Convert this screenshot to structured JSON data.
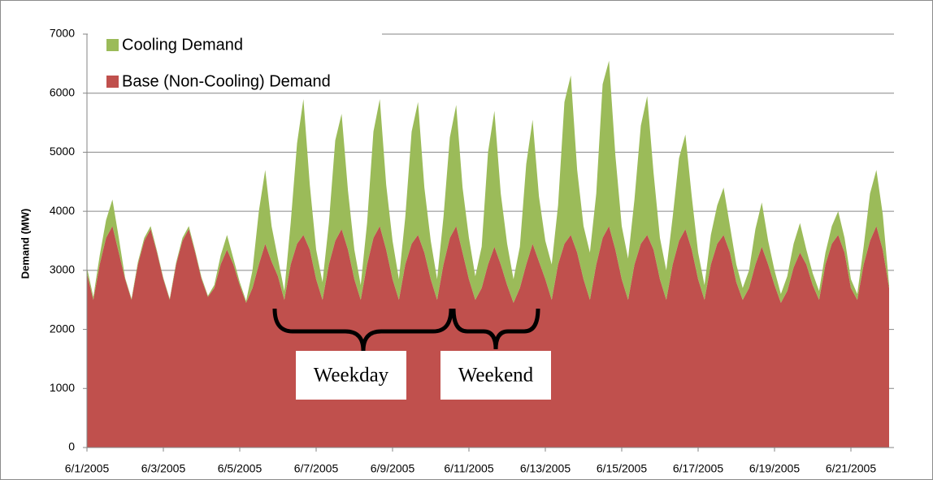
{
  "chart_data": {
    "type": "stacked-area",
    "y_label": "Demand (MW)",
    "categories": [
      "6/1/2005",
      null,
      null,
      null,
      null,
      null,
      null,
      null,
      null,
      null,
      null,
      null,
      "6/3/2005",
      null,
      null,
      null,
      null,
      null,
      null,
      null,
      null,
      null,
      null,
      null,
      "6/5/2005",
      null,
      null,
      null,
      null,
      null,
      null,
      null,
      null,
      null,
      null,
      null,
      "6/7/2005",
      null,
      null,
      null,
      null,
      null,
      null,
      null,
      null,
      null,
      null,
      null,
      "6/9/2005",
      null,
      null,
      null,
      null,
      null,
      null,
      null,
      null,
      null,
      null,
      null,
      "6/11/2005",
      null,
      null,
      null,
      null,
      null,
      null,
      null,
      null,
      null,
      null,
      null,
      "6/13/2005",
      null,
      null,
      null,
      null,
      null,
      null,
      null,
      null,
      null,
      null,
      null,
      "6/15/2005",
      null,
      null,
      null,
      null,
      null,
      null,
      null,
      null,
      null,
      null,
      null,
      "6/17/2005",
      null,
      null,
      null,
      null,
      null,
      null,
      null,
      null,
      null,
      null,
      null,
      "6/19/2005",
      null,
      null,
      null,
      null,
      null,
      null,
      null,
      null,
      null,
      null,
      null,
      "6/21/2005",
      null,
      null,
      null,
      null,
      null,
      null
    ],
    "series": [
      {
        "name": "Base (Non-Cooling) Demand",
        "color": "#c0504d",
        "values": [
          2950,
          2500,
          3100,
          3550,
          3750,
          3300,
          2850,
          2500,
          3100,
          3500,
          3700,
          3300,
          2850,
          2500,
          3100,
          3500,
          3700,
          3300,
          2850,
          2550,
          2700,
          3100,
          3350,
          3100,
          2750,
          2450,
          2700,
          3100,
          3450,
          3150,
          2900,
          2500,
          3100,
          3450,
          3600,
          3350,
          2850,
          2500,
          3100,
          3500,
          3700,
          3350,
          2850,
          2500,
          3100,
          3550,
          3750,
          3350,
          2850,
          2500,
          3100,
          3450,
          3600,
          3300,
          2850,
          2500,
          3100,
          3550,
          3750,
          3300,
          2850,
          2500,
          2700,
          3100,
          3400,
          3100,
          2750,
          2450,
          2700,
          3100,
          3450,
          3150,
          2850,
          2500,
          3100,
          3450,
          3600,
          3300,
          2850,
          2500,
          3100,
          3550,
          3750,
          3350,
          2850,
          2500,
          3100,
          3450,
          3600,
          3350,
          2850,
          2500,
          3100,
          3500,
          3700,
          3350,
          2850,
          2500,
          3100,
          3450,
          3600,
          3300,
          2800,
          2500,
          2700,
          3100,
          3400,
          3100,
          2750,
          2450,
          2650,
          3050,
          3300,
          3100,
          2750,
          2500,
          3100,
          3450,
          3600,
          3300,
          2700,
          2500,
          3100,
          3500,
          3750,
          3350,
          2700
        ]
      },
      {
        "name": "Cooling Demand",
        "color": "#9bbb59",
        "values": [
          100,
          50,
          150,
          300,
          450,
          250,
          20,
          20,
          40,
          50,
          50,
          30,
          20,
          20,
          30,
          50,
          50,
          30,
          30,
          20,
          50,
          150,
          250,
          100,
          50,
          30,
          300,
          900,
          1250,
          600,
          300,
          150,
          700,
          1700,
          2300,
          1100,
          500,
          300,
          700,
          1700,
          1950,
          1000,
          500,
          250,
          700,
          1800,
          2150,
          1100,
          650,
          350,
          800,
          1900,
          2250,
          1100,
          650,
          350,
          800,
          1700,
          2050,
          1100,
          700,
          400,
          700,
          1900,
          2300,
          1200,
          700,
          400,
          700,
          1700,
          2100,
          1100,
          650,
          600,
          1000,
          2400,
          2700,
          1400,
          900,
          800,
          1200,
          2600,
          2800,
          1600,
          900,
          700,
          1100,
          2000,
          2350,
          1300,
          700,
          500,
          800,
          1400,
          1600,
          900,
          450,
          250,
          500,
          650,
          800,
          450,
          300,
          200,
          300,
          600,
          750,
          400,
          250,
          150,
          250,
          400,
          500,
          250,
          200,
          150,
          200,
          300,
          400,
          250,
          150,
          100,
          300,
          800,
          950,
          600,
          50
        ]
      }
    ],
    "ylim": [
      0,
      7000
    ],
    "yticks": [
      0,
      1000,
      2000,
      3000,
      4000,
      5000,
      6000,
      7000
    ],
    "grid": true,
    "legend": "top-left",
    "annotations": [
      "Weekday",
      "Weekend"
    ]
  }
}
